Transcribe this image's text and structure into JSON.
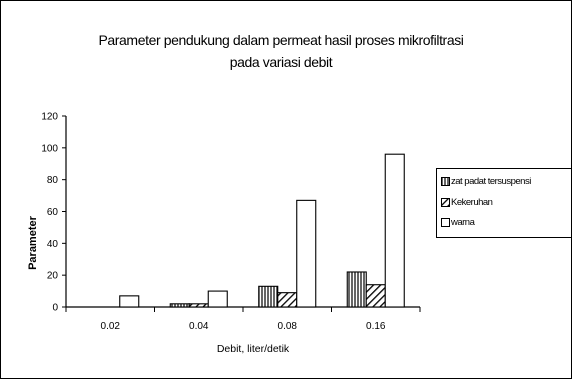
{
  "chart_data": {
    "type": "bar",
    "title_line1": "Parameter pendukung dalam permeat hasil proses mikrofiltrasi",
    "title_line2": "pada variasi debit",
    "xlabel": "Debit, liter/detik",
    "ylabel": "Parameter",
    "categories": [
      "0.02",
      "0.04",
      "0.08",
      "0.16"
    ],
    "ylim": [
      0,
      120
    ],
    "yticks": [
      "0",
      "20",
      "40",
      "60",
      "80",
      "100",
      "120"
    ],
    "grid": false,
    "legend_position": "right",
    "series": [
      {
        "name": "zat padat tersuspensi",
        "pattern": "vertical-lines",
        "values": [
          0,
          2,
          13,
          22
        ]
      },
      {
        "name": "Kekeruhan",
        "pattern": "diagonal-lines",
        "values": [
          0,
          2,
          9,
          14
        ]
      },
      {
        "name": "warna",
        "pattern": "white",
        "values": [
          7,
          10,
          67,
          96
        ]
      }
    ]
  }
}
